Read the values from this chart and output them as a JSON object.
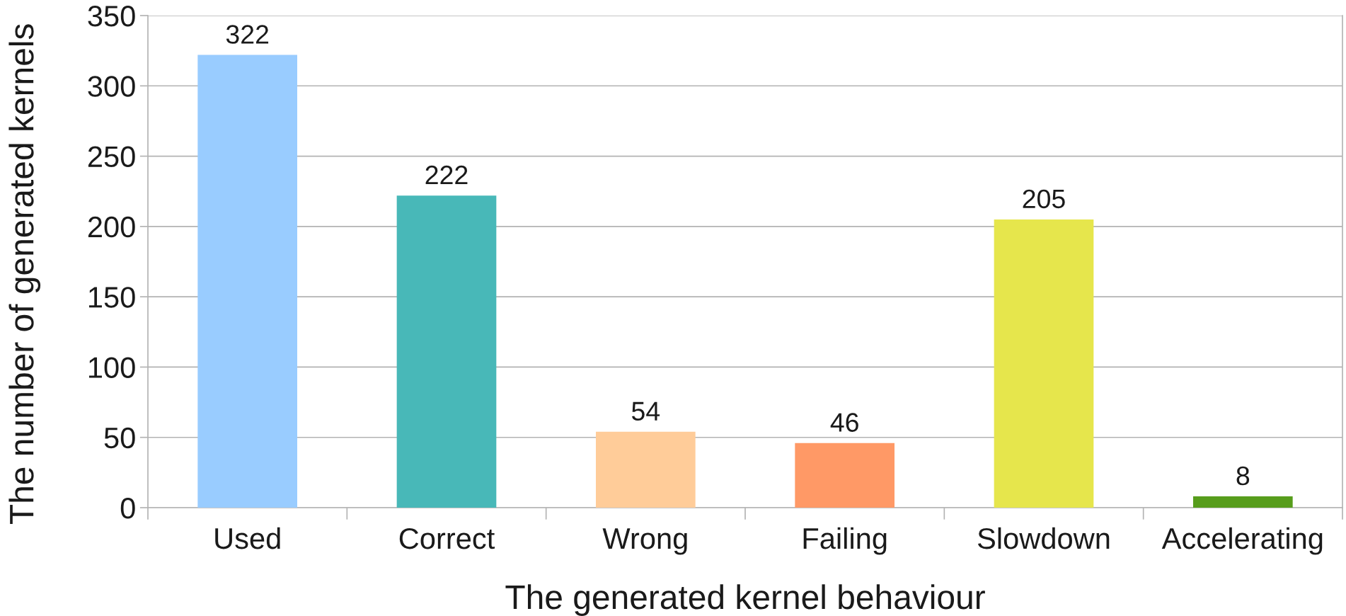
{
  "chart_data": {
    "type": "bar",
    "xlabel": "The generated kernel behaviour",
    "ylabel": "The number of generated kernels",
    "categories": [
      "Used",
      "Correct",
      "Wrong",
      "Failing",
      "Slowdown",
      "Accelerating"
    ],
    "values": [
      322,
      222,
      54,
      46,
      205,
      8
    ],
    "colors": [
      "#99ccff",
      "#48b8b8",
      "#ffcc99",
      "#ff9966",
      "#e6e64c",
      "#579d1c"
    ],
    "ylim": [
      0,
      350
    ],
    "yticks": [
      0,
      50,
      100,
      150,
      200,
      250,
      300,
      350
    ],
    "grid": "y",
    "data_labels": true,
    "legend": false
  }
}
